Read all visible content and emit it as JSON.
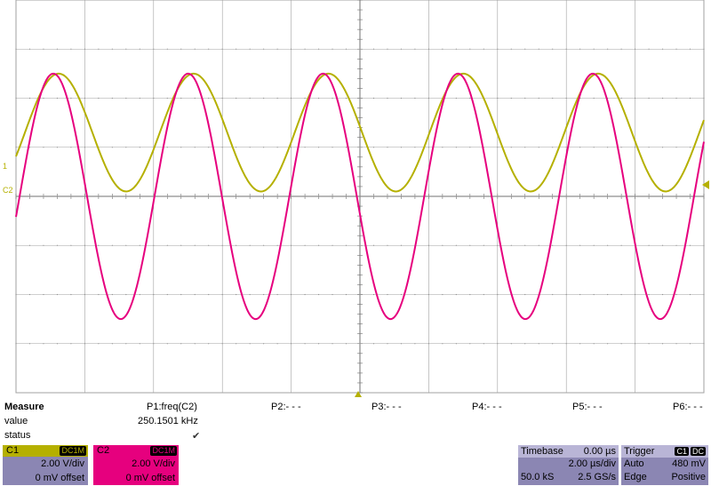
{
  "channels": [
    {
      "name": "C1",
      "coupling": "DC1M",
      "vdiv": "2.00 V/div",
      "offset": "0 mV offset",
      "color": "#b5b000",
      "marker": "1"
    },
    {
      "name": "C2",
      "coupling": "DC1M",
      "vdiv": "2.00 V/div",
      "offset": "0 mV offset",
      "color": "#e6007e",
      "marker": "C2"
    }
  ],
  "waveforms": {
    "c1": {
      "color": "#b5b000",
      "cycles_on_screen": 5.1,
      "peak_div": 2.5,
      "trough_div": 0.1,
      "phase_cycles": 0.0
    },
    "c2": {
      "color": "#e6007e",
      "cycles_on_screen": 5.1,
      "peak_div": 2.5,
      "trough_div": -2.5,
      "phase_cycles": 0.0
    }
  },
  "measure": {
    "title": "Measure",
    "value_label": "value",
    "status_label": "status",
    "params": [
      {
        "name": "P1:freq(C2)",
        "value": "250.1501 kHz",
        "status": "✔"
      },
      {
        "name": "P2:- - -",
        "value": "",
        "status": ""
      },
      {
        "name": "P3:- - -",
        "value": "",
        "status": ""
      },
      {
        "name": "P4:- - -",
        "value": "",
        "status": ""
      },
      {
        "name": "P5:- - -",
        "value": "",
        "status": ""
      },
      {
        "name": "P6:- - -",
        "value": "",
        "status": ""
      }
    ]
  },
  "timebase": {
    "title": "Timebase",
    "delay": "0.00 µs",
    "tdiv": "2.00 µs/div",
    "samples": "50.0 kS",
    "rate": "2.5 GS/s"
  },
  "trigger": {
    "title": "Trigger",
    "source": "C1",
    "coupling": "DC",
    "mode": "Auto",
    "level": "480 mV",
    "type": "Edge",
    "slope": "Positive"
  },
  "colors": {
    "grid": "#a0a0a0",
    "panel_purple": "#8b86b3",
    "panel_header": "#b9b5d6",
    "trigger_marker": "#b5b000"
  }
}
